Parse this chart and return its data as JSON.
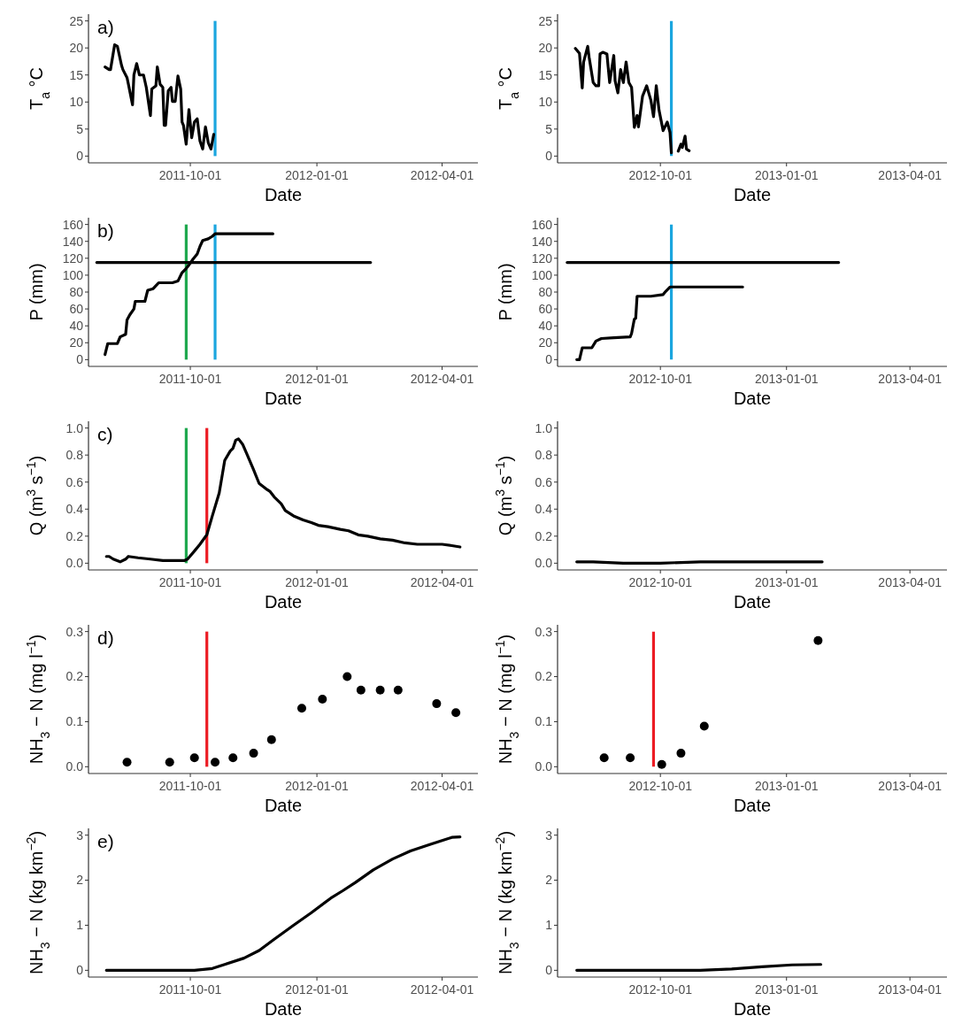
{
  "chart_data": [
    {
      "type": "line",
      "ylabel": "T$_{a}$ °C",
      "xlabel": "Date",
      "annotations": [
        "a)"
      ],
      "xlim": [
        "2011-07-19",
        "2012-04-27"
      ],
      "xticks": [
        "2011-10-01",
        "2012-01-01",
        "2012-04-01"
      ],
      "ylim": [
        -1.25,
        26.25
      ],
      "yticks": [
        0,
        5,
        10,
        15,
        20,
        25
      ],
      "series": [
        {
          "color": "#000000",
          "x": [
            "2011-07-31",
            "2011-08-03",
            "2011-08-04",
            "2011-08-07",
            "2011-08-09",
            "2011-08-12",
            "2011-08-13",
            "2011-08-16",
            "2011-08-17",
            "2011-08-20",
            "2011-08-21",
            "2011-08-23",
            "2011-08-25",
            "2011-08-28",
            "2011-08-30",
            "2011-09-02",
            "2011-09-03",
            "2011-09-06",
            "2011-09-07",
            "2011-09-09",
            "2011-09-11",
            "2011-09-12",
            "2011-09-13",
            "2011-09-15",
            "2011-09-17",
            "2011-09-18",
            "2011-09-20",
            "2011-09-22",
            "2011-09-24",
            "2011-09-25",
            "2011-09-26",
            "2011-09-28",
            "2011-09-30",
            "2011-10-02",
            "2011-10-04",
            "2011-10-06",
            "2011-10-08",
            "2011-10-10",
            "2011-10-12",
            "2011-10-14",
            "2011-10-16",
            "2011-10-18"
          ],
          "values": [
            16.5,
            16,
            16,
            20.6,
            20.3,
            16.8,
            16,
            14.5,
            13.3,
            9.5,
            15,
            17.1,
            15,
            15,
            12.7,
            7.5,
            12.4,
            13,
            16.5,
            13.3,
            12.7,
            5.7,
            5.7,
            12.1,
            12.7,
            10.1,
            10.1,
            14.8,
            12.4,
            6.3,
            5.7,
            2.2,
            8.6,
            3.4,
            6.3,
            6.9,
            2.8,
            1.3,
            5.4,
            2.5,
            1.3,
            4
          ]
        }
      ],
      "ref_lines": [
        {
          "axis": "x",
          "value": "2011-10-19",
          "color": "#1ba6df"
        }
      ]
    },
    {
      "type": "line",
      "ylabel": "T$_{a}$ °C",
      "xlabel": "Date",
      "xlim": [
        "2012-07-18",
        "2013-04-28"
      ],
      "xticks": [
        "2012-10-01",
        "2013-01-01",
        "2013-04-01"
      ],
      "ylim": [
        -1.25,
        26.25
      ],
      "yticks": [
        0,
        5,
        10,
        15,
        20,
        25
      ],
      "series": [
        {
          "color": "#000000",
          "x": [
            "2012-07-31",
            "2012-08-03",
            "2012-08-05",
            "2012-08-06",
            "2012-08-09",
            "2012-08-10",
            "2012-08-13",
            "2012-08-15",
            "2012-08-17",
            "2012-08-18",
            "2012-08-20",
            "2012-08-23",
            "2012-08-25",
            "2012-08-28",
            "2012-08-29",
            "2012-08-31",
            "2012-09-02",
            "2012-09-04",
            "2012-09-06",
            "2012-09-08",
            "2012-09-10",
            "2012-09-12",
            "2012-09-14",
            "2012-09-15",
            "2012-09-18",
            "2012-09-21",
            "2012-09-24",
            "2012-09-26",
            "2012-09-28",
            "2012-09-30",
            "2012-10-03",
            "2012-10-06",
            "2012-10-08",
            "2012-10-09",
            "2012-10-11",
            "2012-10-14",
            "2012-10-16",
            "2012-10-17",
            "2012-10-19",
            "2012-10-20",
            "2012-10-22"
          ],
          "values": [
            19.9,
            19,
            12.6,
            17.4,
            20.3,
            18.3,
            13.6,
            13,
            13,
            18.9,
            19.2,
            18.9,
            13.6,
            18.6,
            13.9,
            11.7,
            16,
            13.6,
            17.4,
            13.6,
            12.7,
            5.3,
            7.5,
            5.4,
            11.1,
            13,
            10.4,
            7.3,
            13,
            8.5,
            4.7,
            6.3,
            4.4,
            0.6,
            null,
            0.9,
            2.2,
            1.6,
            3.7,
            1.3,
            1.0
          ]
        }
      ],
      "ref_lines": [
        {
          "axis": "x",
          "value": "2012-10-09",
          "color": "#1ba6df"
        }
      ]
    },
    {
      "type": "line",
      "ylabel": "P (mm)",
      "xlabel": "Date",
      "annotations": [
        "b)"
      ],
      "xlim": [
        "2011-07-19",
        "2012-04-27"
      ],
      "xticks": [
        "2011-10-01",
        "2012-01-01",
        "2012-04-01"
      ],
      "ylim": [
        -8,
        168
      ],
      "yticks": [
        0,
        20,
        40,
        60,
        80,
        100,
        120,
        140,
        160
      ],
      "series": [
        {
          "color": "#000000",
          "x": [
            "2011-07-31",
            "2011-08-02",
            "2011-08-09",
            "2011-08-11",
            "2011-08-15",
            "2011-08-16",
            "2011-08-18",
            "2011-08-21",
            "2011-08-22",
            "2011-08-29",
            "2011-08-31",
            "2011-09-04",
            "2011-09-08",
            "2011-09-18",
            "2011-09-22",
            "2011-09-25",
            "2011-09-28",
            "2011-09-30",
            "2011-10-03",
            "2011-10-06",
            "2011-10-08",
            "2011-10-10",
            "2011-10-14",
            "2011-10-17",
            "2011-10-19",
            "2011-11-30"
          ],
          "values": [
            6,
            19,
            19,
            27,
            30,
            47,
            53,
            60,
            69,
            69,
            82,
            84,
            91,
            91,
            93,
            103,
            108,
            112,
            119,
            125,
            134,
            141,
            143,
            146,
            149,
            149
          ]
        },
        {
          "color": "#000000",
          "x": [
            "2011-07-25",
            "2012-02-09"
          ],
          "values": [
            115,
            115
          ]
        }
      ],
      "ref_lines": [
        {
          "axis": "x",
          "value": "2011-09-28",
          "color": "#1fa84f"
        },
        {
          "axis": "x",
          "value": "2011-10-19",
          "color": "#1ba6df"
        }
      ]
    },
    {
      "type": "line",
      "ylabel": "P (mm)",
      "xlabel": "Date",
      "xlim": [
        "2012-07-18",
        "2013-04-28"
      ],
      "xticks": [
        "2012-10-01",
        "2013-01-01",
        "2013-04-01"
      ],
      "ylim": [
        -8,
        168
      ],
      "yticks": [
        0,
        20,
        40,
        60,
        80,
        100,
        120,
        140,
        160
      ],
      "series": [
        {
          "color": "#000000",
          "x": [
            "2012-08-01",
            "2012-08-03",
            "2012-08-05",
            "2012-08-12",
            "2012-08-15",
            "2012-08-19",
            "2012-08-28",
            "2012-09-09",
            "2012-09-10",
            "2012-09-12",
            "2012-09-13",
            "2012-09-14",
            "2012-09-24",
            "2012-10-03",
            "2012-10-05",
            "2012-10-08",
            "2012-11-30"
          ],
          "values": [
            0,
            0,
            14,
            14,
            22,
            25,
            26,
            27,
            31,
            48,
            49,
            75,
            75,
            77,
            81,
            86,
            86
          ]
        },
        {
          "color": "#000000",
          "x": [
            "2012-07-25",
            "2013-02-08"
          ],
          "values": [
            115,
            115
          ]
        }
      ],
      "ref_lines": [
        {
          "axis": "x",
          "value": "2012-10-09",
          "color": "#1ba6df"
        }
      ]
    },
    {
      "type": "line",
      "ylabel": "Q (m$^{3}$ s$^{−1}$)",
      "xlabel": "Date",
      "annotations": [
        "c)"
      ],
      "xlim": [
        "2011-07-19",
        "2012-04-27"
      ],
      "xticks": [
        "2011-10-01",
        "2012-01-01",
        "2012-04-01"
      ],
      "ylim": [
        -0.05,
        1.05
      ],
      "yticks": [
        {
          "value": 0,
          "label": "0.0"
        },
        {
          "value": 0.2,
          "label": "0.2"
        },
        {
          "value": 0.4,
          "label": "0.4"
        },
        {
          "value": 0.6,
          "label": "0.6"
        },
        {
          "value": 0.8,
          "label": "0.8"
        },
        {
          "value": 1,
          "label": "1.0"
        }
      ],
      "series": [
        {
          "color": "#000000",
          "x": [
            "2011-08-01",
            "2011-08-03",
            "2011-08-06",
            "2011-08-11",
            "2011-08-15",
            "2011-08-17",
            "2011-08-24",
            "2011-09-02",
            "2011-09-11",
            "2011-09-20",
            "2011-09-27",
            "2011-09-29",
            "2011-10-04",
            "2011-10-08",
            "2011-10-13",
            "2011-10-17",
            "2011-10-22",
            "2011-10-26",
            "2011-10-30",
            "2011-11-01",
            "2011-11-03",
            "2011-11-05",
            "2011-11-08",
            "2011-11-11",
            "2011-11-16",
            "2011-11-20",
            "2011-11-25",
            "2011-11-28",
            "2011-12-01",
            "2011-12-06",
            "2011-12-09",
            "2011-12-15",
            "2011-12-22",
            "2011-12-28",
            "2012-01-02",
            "2012-01-09",
            "2012-01-18",
            "2012-01-24",
            "2012-01-31",
            "2012-02-07",
            "2012-02-16",
            "2012-02-25",
            "2012-03-05",
            "2012-03-14",
            "2012-03-23",
            "2012-04-01",
            "2012-04-08",
            "2012-04-14"
          ],
          "values": [
            0.05,
            0.05,
            0.03,
            0.01,
            0.03,
            0.05,
            0.04,
            0.03,
            0.02,
            0.02,
            0.02,
            0.03,
            0.09,
            0.14,
            0.21,
            0.35,
            0.52,
            0.76,
            0.83,
            0.85,
            0.91,
            0.92,
            0.88,
            0.81,
            0.69,
            0.59,
            0.55,
            0.53,
            0.49,
            0.44,
            0.39,
            0.35,
            0.32,
            0.3,
            0.28,
            0.27,
            0.25,
            0.24,
            0.21,
            0.2,
            0.18,
            0.17,
            0.15,
            0.14,
            0.14,
            0.14,
            0.13,
            0.12
          ]
        }
      ],
      "ref_lines": [
        {
          "axis": "x",
          "value": "2011-09-28",
          "color": "#1fa84f"
        },
        {
          "axis": "x",
          "value": "2011-10-13",
          "color": "#ec1c24"
        }
      ]
    },
    {
      "type": "line",
      "ylabel": "Q (m$^{3}$ s$^{−1}$)",
      "xlabel": "Date",
      "xlim": [
        "2012-07-18",
        "2013-04-28"
      ],
      "xticks": [
        "2012-10-01",
        "2013-01-01",
        "2013-04-01"
      ],
      "ylim": [
        -0.05,
        1.05
      ],
      "yticks": [
        {
          "value": 0,
          "label": "0.0"
        },
        {
          "value": 0.2,
          "label": "0.2"
        },
        {
          "value": 0.4,
          "label": "0.4"
        },
        {
          "value": 0.6,
          "label": "0.6"
        },
        {
          "value": 0.8,
          "label": "0.8"
        },
        {
          "value": 1,
          "label": "1.0"
        }
      ],
      "series": [
        {
          "color": "#000000",
          "x": [
            "2012-08-01",
            "2012-08-13",
            "2012-09-04",
            "2012-10-01",
            "2012-10-30",
            "2012-12-03",
            "2012-12-25",
            "2013-01-27"
          ],
          "values": [
            0.01,
            0.01,
            0,
            0,
            0.01,
            0.01,
            0.01,
            0.01
          ]
        }
      ]
    },
    {
      "type": "scatter",
      "marker": "circle",
      "ylabel": "NH$_{3}$ − N (mg l$^{−1}$)",
      "xlabel": "Date",
      "annotations": [
        "d)"
      ],
      "xlim": [
        "2011-07-19",
        "2012-04-27"
      ],
      "xticks": [
        "2011-10-01",
        "2012-01-01",
        "2012-04-01"
      ],
      "ylim": [
        -0.015,
        0.315
      ],
      "yticks": [
        {
          "value": 0,
          "label": "0.0"
        },
        {
          "value": 0.1,
          "label": "0.1"
        },
        {
          "value": 0.2,
          "label": "0.2"
        },
        {
          "value": 0.3,
          "label": "0.3"
        }
      ],
      "series": [
        {
          "color": "#000000",
          "x": [
            "2011-08-16",
            "2011-09-16",
            "2011-10-04",
            "2011-10-19",
            "2011-11-01",
            "2011-11-16",
            "2011-11-29",
            "2011-12-21",
            "2012-01-05",
            "2012-01-23",
            "2012-02-02",
            "2012-02-16",
            "2012-02-29",
            "2012-03-28",
            "2012-04-11"
          ],
          "values": [
            0.01,
            0.01,
            0.02,
            0.01,
            0.02,
            0.03,
            0.06,
            0.13,
            0.15,
            0.2,
            0.17,
            0.17,
            0.17,
            0.14,
            0.12
          ]
        }
      ],
      "ref_lines": [
        {
          "axis": "x",
          "value": "2011-10-13",
          "color": "#ec1c24"
        }
      ]
    },
    {
      "type": "scatter",
      "marker": "circle",
      "ylabel": "NH$_{3}$ − N (mg l$^{−1}$)",
      "xlabel": "Date",
      "xlim": [
        "2012-07-18",
        "2013-04-28"
      ],
      "xticks": [
        "2012-10-01",
        "2013-01-01",
        "2013-04-01"
      ],
      "ylim": [
        -0.015,
        0.315
      ],
      "yticks": [
        {
          "value": 0,
          "label": "0.0"
        },
        {
          "value": 0.1,
          "label": "0.1"
        },
        {
          "value": 0.2,
          "label": "0.2"
        },
        {
          "value": 0.3,
          "label": "0.3"
        }
      ],
      "series": [
        {
          "color": "#000000",
          "x": [
            "2012-08-21",
            "2012-09-09",
            "2012-10-02",
            "2012-10-16",
            "2012-11-02",
            "2013-01-24"
          ],
          "values": [
            0.02,
            0.02,
            0.005,
            0.03,
            0.09,
            0.28
          ]
        }
      ],
      "ref_lines": [
        {
          "axis": "x",
          "value": "2012-09-26",
          "color": "#ec1c24"
        }
      ]
    },
    {
      "type": "line",
      "ylabel": "NH$_{3}$ − N (kg km$^{−2}$)",
      "xlabel": "Date",
      "annotations": [
        "e)"
      ],
      "xlim": [
        "2011-07-19",
        "2012-04-27"
      ],
      "xticks": [
        "2011-10-01",
        "2012-01-01",
        "2012-04-01"
      ],
      "ylim": [
        -0.15,
        3.15
      ],
      "yticks": [
        0,
        1,
        2,
        3
      ],
      "series": [
        {
          "color": "#000000",
          "x": [
            "2011-08-01",
            "2011-09-07",
            "2011-10-04",
            "2011-10-17",
            "2011-10-26",
            "2011-11-09",
            "2011-11-20",
            "2011-12-01",
            "2011-12-15",
            "2011-12-28",
            "2012-01-11",
            "2012-01-20",
            "2012-01-29",
            "2012-02-11",
            "2012-02-25",
            "2012-03-09",
            "2012-03-23",
            "2012-04-08",
            "2012-04-14"
          ],
          "values": [
            0,
            0,
            0,
            0.04,
            0.13,
            0.27,
            0.44,
            0.69,
            1.0,
            1.28,
            1.6,
            1.77,
            1.95,
            2.23,
            2.47,
            2.65,
            2.79,
            2.95,
            2.96
          ]
        }
      ]
    },
    {
      "type": "line",
      "ylabel": "NH$_{3}$ − N (kg km$^{−2}$)",
      "xlabel": "Date",
      "xlim": [
        "2012-07-18",
        "2013-04-28"
      ],
      "xticks": [
        "2012-10-01",
        "2013-01-01",
        "2013-04-01"
      ],
      "ylim": [
        -0.15,
        3.15
      ],
      "yticks": [
        0,
        1,
        2,
        3
      ],
      "series": [
        {
          "color": "#000000",
          "x": [
            "2012-08-01",
            "2012-10-30",
            "2012-11-22",
            "2012-12-14",
            "2013-01-05",
            "2013-01-26"
          ],
          "values": [
            0,
            0,
            0.03,
            0.08,
            0.12,
            0.13
          ]
        }
      ]
    }
  ]
}
